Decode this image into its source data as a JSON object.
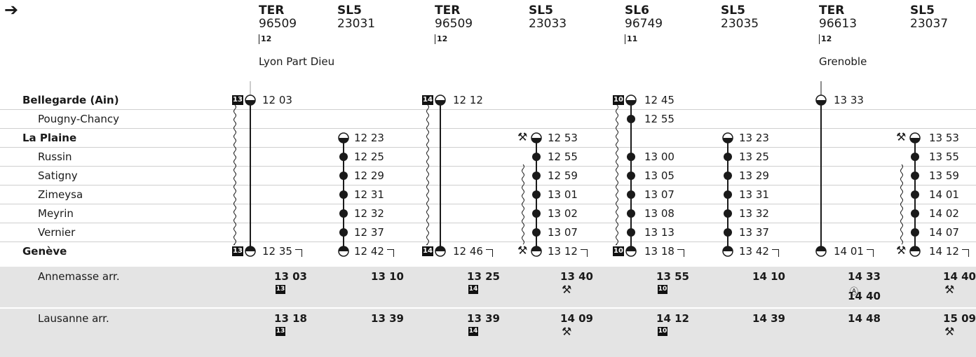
{
  "arrow": "➔",
  "trains": [
    {
      "type": "TER",
      "number": "96509",
      "platform": "12",
      "destination": "Lyon Part Dieu"
    },
    {
      "type": "SL5",
      "number": "23031",
      "platform": "",
      "destination": ""
    },
    {
      "type": "TER",
      "number": "96509",
      "platform": "12",
      "destination": ""
    },
    {
      "type": "SL5",
      "number": "23033",
      "platform": "",
      "destination": ""
    },
    {
      "type": "SL6",
      "number": "96749",
      "platform": "11",
      "destination": ""
    },
    {
      "type": "SL5",
      "number": "23035",
      "platform": "",
      "destination": ""
    },
    {
      "type": "TER",
      "number": "96613",
      "platform": "12",
      "destination": "Grenoble"
    },
    {
      "type": "SL5",
      "number": "23037",
      "platform": "",
      "destination": ""
    }
  ],
  "stations": [
    {
      "name": "Bellegarde (Ain)",
      "bold": true
    },
    {
      "name": "Pougny-Chancy",
      "bold": false
    },
    {
      "name": "La Plaine",
      "bold": true
    },
    {
      "name": "Russin",
      "bold": false
    },
    {
      "name": "Satigny",
      "bold": false
    },
    {
      "name": "Zimeysa",
      "bold": false
    },
    {
      "name": "Meyrin",
      "bold": false
    },
    {
      "name": "Vernier",
      "bold": false
    },
    {
      "name": "Genève",
      "bold": true
    }
  ],
  "times": [
    [
      "12 03",
      "",
      "12 12",
      "",
      "12 45",
      "",
      "13 33",
      ""
    ],
    [
      "",
      "",
      "",
      "",
      "12 55",
      "",
      "",
      ""
    ],
    [
      "",
      "12 23",
      "",
      "12 53",
      "",
      "13 23",
      "",
      "13 53"
    ],
    [
      "",
      "12 25",
      "",
      "12 55",
      "13 00",
      "13 25",
      "",
      "13 55"
    ],
    [
      "",
      "12 29",
      "",
      "12 59",
      "13 05",
      "13 29",
      "",
      "13 59"
    ],
    [
      "",
      "12 31",
      "",
      "13 01",
      "13 07",
      "13 31",
      "",
      "14 01"
    ],
    [
      "",
      "12 32",
      "",
      "13 02",
      "13 08",
      "13 32",
      "",
      "14 02"
    ],
    [
      "",
      "12 37",
      "",
      "13 07",
      "13 13",
      "13 37",
      "",
      "14 07"
    ],
    [
      "12 35",
      "12 42",
      "12 46",
      "13 12",
      "13 18",
      "13 42",
      "14 01",
      "14 12"
    ]
  ],
  "badges": {
    "c0": "13",
    "c2": "14",
    "c4": "10"
  },
  "tools_symbol": "⚒",
  "connections": [
    {
      "label": "Annemasse arr.",
      "times": [
        "13 03",
        "13 10",
        "13 25",
        "13 40",
        "13 55",
        "14 10",
        "14 33",
        "14 40"
      ],
      "marks": [
        "13",
        "",
        "14",
        "tools",
        "10",
        "",
        "A",
        "tools"
      ],
      "extra": {
        "col": 6,
        "time": "14 40"
      }
    },
    {
      "label": "Lausanne arr.",
      "times": [
        "13 18",
        "13 39",
        "13 39",
        "14 09",
        "14 12",
        "14 39",
        "14 48",
        "15 09"
      ],
      "marks": [
        "13",
        "",
        "14",
        "tools",
        "10",
        "",
        "",
        "tools"
      ]
    }
  ],
  "circled_A": "Ⓐ"
}
